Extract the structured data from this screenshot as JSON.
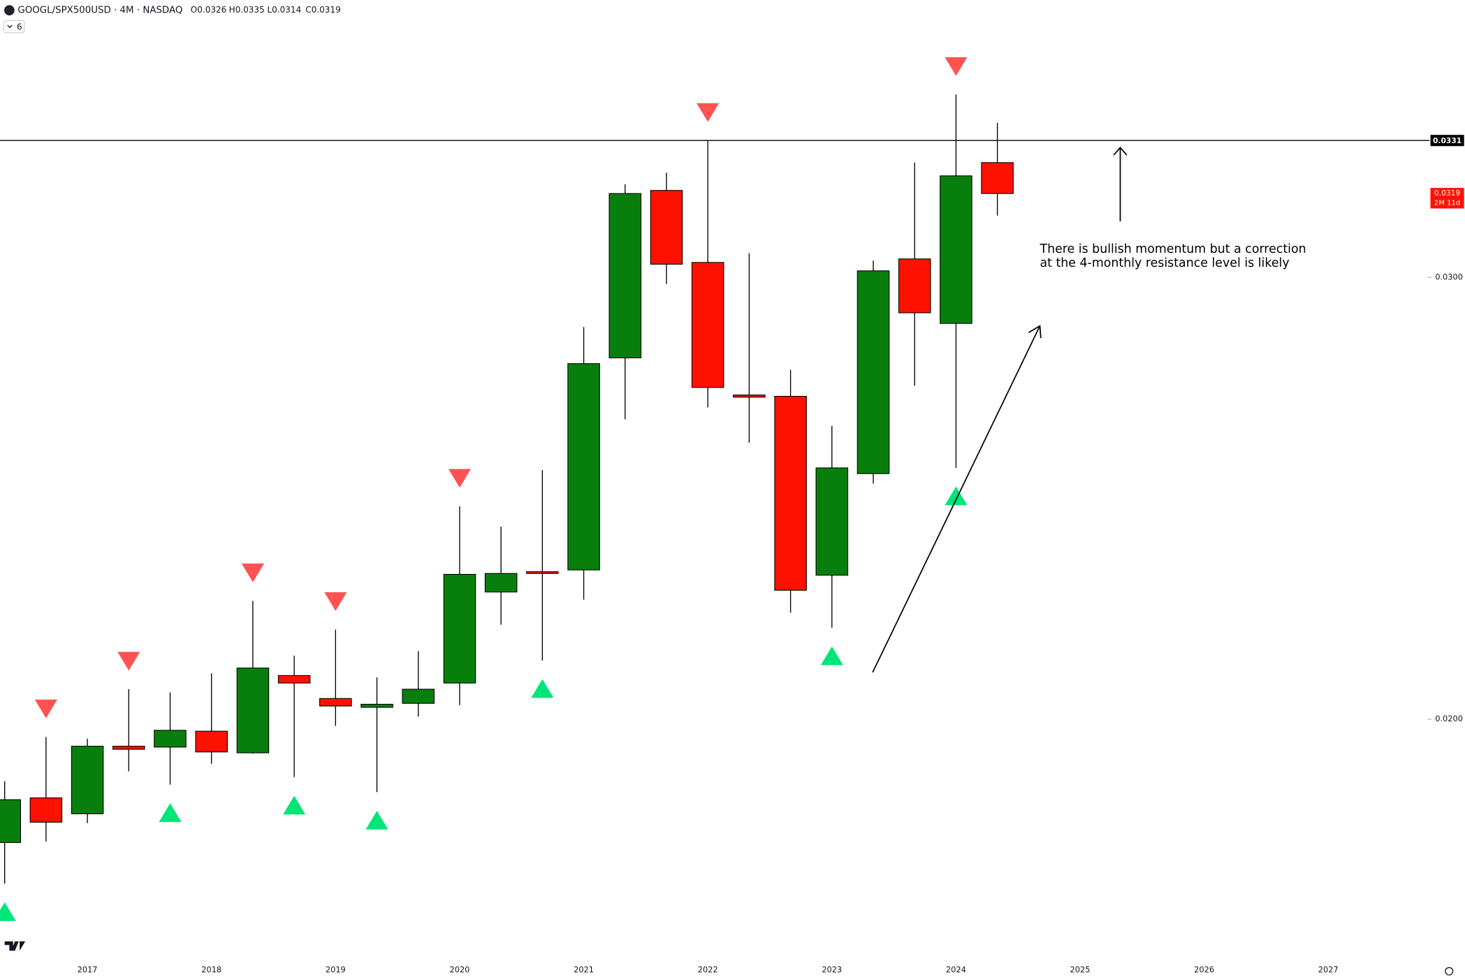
{
  "chart_data": {
    "type": "candlestick",
    "title": "GOOGL/SPX500USD · 4M · NASDAQ",
    "legend_values": [
      "O0.0326",
      "H0.0335",
      "L0.0314",
      "C0.0319"
    ],
    "indicator_label": "6",
    "categories": [
      null,
      null,
      "2017",
      null,
      null,
      "2018",
      null,
      null,
      "2019",
      null,
      null,
      "2020",
      null,
      null,
      "2021",
      null,
      null,
      "2022",
      null,
      null,
      "2023",
      null,
      null,
      "2024",
      null,
      null,
      "2025",
      null,
      null,
      "2026",
      null,
      null,
      "2027"
    ],
    "open": [
      0.01721,
      0.01822,
      0.01786,
      0.01939,
      0.01937,
      0.01973,
      0.01924,
      0.02099,
      0.02047,
      0.02027,
      0.02036,
      0.02082,
      0.02288,
      0.02334,
      0.02338,
      0.02818,
      0.03197,
      0.03034,
      0.02734,
      0.02731,
      0.02326,
      0.02556,
      0.03042,
      0.02896,
      0.0326,
      null,
      null,
      null,
      null,
      null,
      null,
      null,
      null
    ],
    "high": [
      0.0186,
      0.0196,
      0.01956,
      0.02068,
      0.02061,
      0.02104,
      0.02268,
      0.02144,
      0.02203,
      0.02095,
      0.02154,
      0.02482,
      0.02436,
      0.02564,
      0.02888,
      0.03211,
      0.03237,
      0.0331,
      0.03055,
      0.02791,
      0.02664,
      0.03038,
      0.0326,
      0.03414,
      0.0335,
      null,
      null,
      null,
      null,
      null,
      null,
      null,
      null
    ],
    "low": [
      0.01628,
      0.01723,
      0.01765,
      0.01882,
      0.01852,
      0.01899,
      0.01922,
      0.01869,
      0.01985,
      0.01835,
      0.02006,
      0.02032,
      0.02214,
      0.02133,
      0.02271,
      0.02679,
      0.02985,
      0.02706,
      0.02626,
      0.02241,
      0.02207,
      0.02533,
      0.02755,
      0.02569,
      0.0314,
      null,
      null,
      null,
      null,
      null,
      null,
      null,
      null
    ],
    "close": [
      0.01818,
      0.01767,
      0.01939,
      0.01932,
      0.01975,
      0.01926,
      0.02116,
      0.02082,
      0.0203,
      0.02034,
      0.02068,
      0.02328,
      0.0233,
      0.0233,
      0.02805,
      0.0319,
      0.0303,
      0.02751,
      0.02729,
      0.02292,
      0.02569,
      0.03015,
      0.0292,
      0.0323,
      0.0319,
      null,
      null,
      null,
      null,
      null,
      null,
      null,
      null
    ],
    "up_color": "#087f0d",
    "down_color": "#ff1100",
    "sell_signals": [
      1,
      3,
      6,
      8,
      11,
      17,
      23
    ],
    "buy_signals": [
      0,
      4,
      7,
      9,
      13,
      20,
      23
    ],
    "sell_color": "#ff5252",
    "buy_color": "#00e676",
    "ylim": [
      0.01455,
      0.03628
    ],
    "yticks": [
      {
        "value": 0.03,
        "label": "0.0300"
      },
      {
        "value": 0.02,
        "label": "0.0200"
      }
    ],
    "hline": {
      "value": 0.0331,
      "label": "0.0331"
    },
    "last_price": {
      "value": 0.0319,
      "label": "0.0319",
      "countdown": "2M 11d"
    },
    "annotation": [
      "There is bullish momentum but a correction",
      "at the 4-monthly resistance level is likely"
    ]
  }
}
